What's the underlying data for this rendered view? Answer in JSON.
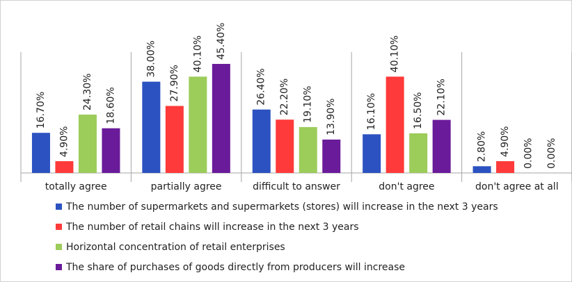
{
  "chart_data": {
    "type": "bar",
    "categories": [
      "totally agree",
      "partially agree",
      "difficult to answer",
      "don't agree",
      "don't agree at all"
    ],
    "series": [
      {
        "name": "The number of supermarkets and supermarkets (stores) will increase in the next 3 years",
        "color": "#2c52c1",
        "values": [
          16.7,
          38.0,
          26.4,
          16.1,
          2.8
        ],
        "value_labels": [
          "16.70%",
          "38.00%",
          "26.40%",
          "16.10%",
          "2.80%"
        ]
      },
      {
        "name": "The number of retail chains will increase in the next 3 years",
        "color": "#ff3a3a",
        "values": [
          4.9,
          27.9,
          22.2,
          40.1,
          4.9
        ],
        "value_labels": [
          "4.90%",
          "27.90%",
          "22.20%",
          "40.10%",
          "4.90%"
        ]
      },
      {
        "name": "Horizontal concentration of retail enterprises",
        "color": "#9ccc5a",
        "values": [
          24.3,
          40.1,
          19.1,
          16.5,
          0.0
        ],
        "value_labels": [
          "24.30%",
          "40.10%",
          "19.10%",
          "16.50%",
          "0.00%"
        ]
      },
      {
        "name": "The share of purchases of goods directly from producers will increase",
        "color": "#6a1b9a",
        "values": [
          18.6,
          45.4,
          13.9,
          22.1,
          0.0
        ],
        "value_labels": [
          "18.60%",
          "45.40%",
          "13.90%",
          "22.10%",
          "0.00%"
        ]
      }
    ],
    "legend": "bottom"
  }
}
